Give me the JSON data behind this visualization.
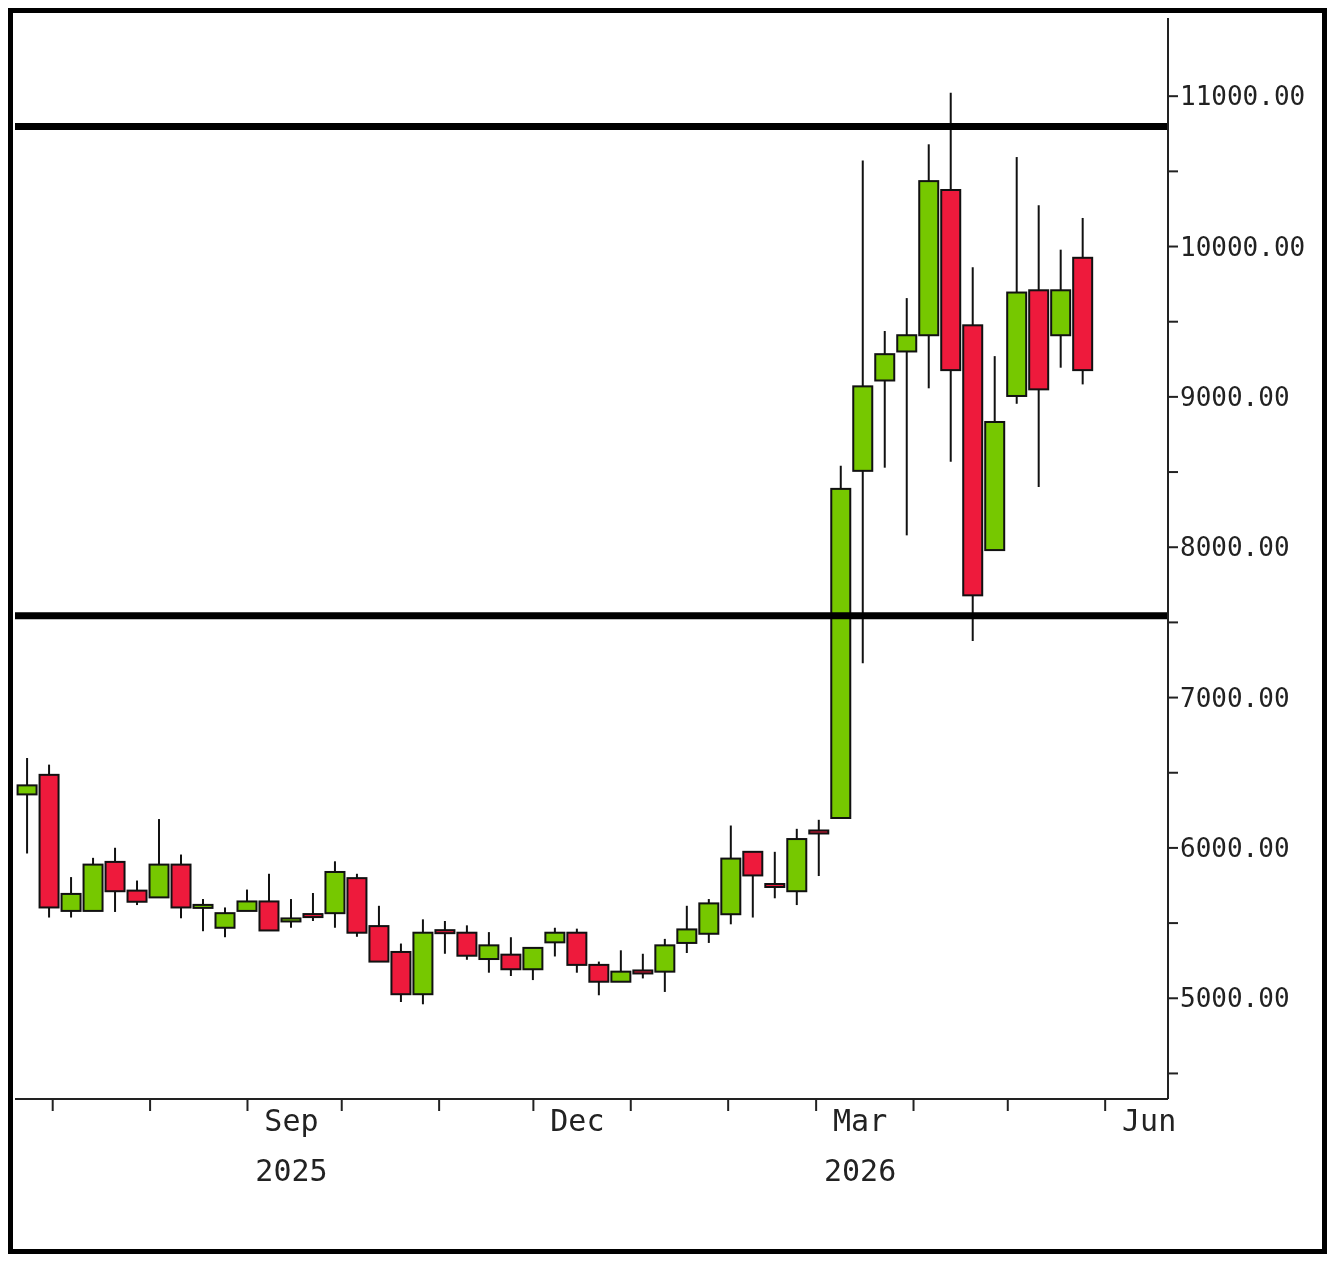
{
  "chart_data": {
    "type": "candlestick",
    "x": [
      "2025-06-23",
      "2025-06-30",
      "2025-07-07",
      "2025-07-14",
      "2025-07-21",
      "2025-07-28",
      "2025-08-04",
      "2025-08-11",
      "2025-08-18",
      "2025-08-25",
      "2025-09-01",
      "2025-09-08",
      "2025-09-15",
      "2025-09-22",
      "2025-09-29",
      "2025-10-06",
      "2025-10-13",
      "2025-10-20",
      "2025-10-27",
      "2025-11-03",
      "2025-11-10",
      "2025-11-17",
      "2025-11-24",
      "2025-12-01",
      "2025-12-08",
      "2025-12-15",
      "2025-12-22",
      "2025-12-29",
      "2026-01-05",
      "2026-01-12",
      "2026-01-19",
      "2026-01-26",
      "2026-02-02",
      "2026-02-09",
      "2026-02-16",
      "2026-02-23",
      "2026-03-02",
      "2026-03-09",
      "2026-03-16",
      "2026-03-23",
      "2026-03-30",
      "2026-04-06",
      "2026-04-13",
      "2026-04-20",
      "2026-04-27",
      "2026-05-04",
      "2026-05-11",
      "2026-05-18",
      "2026-05-25"
    ],
    "ohlc": [
      [
        6356,
        6598,
        5963,
        6416
      ],
      [
        6486,
        6554,
        5537,
        5604
      ],
      [
        5581,
        5806,
        5537,
        5694
      ],
      [
        5581,
        5934,
        5581,
        5889
      ],
      [
        5907,
        6001,
        5574,
        5712
      ],
      [
        5716,
        5783,
        5620,
        5642
      ],
      [
        5671,
        6192,
        5671,
        5889
      ],
      [
        5889,
        5956,
        5532,
        5604
      ],
      [
        5605,
        5660,
        5446,
        5611
      ],
      [
        5469,
        5604,
        5406,
        5566
      ],
      [
        5581,
        5723,
        5581,
        5644
      ],
      [
        5644,
        5828,
        5451,
        5451
      ],
      [
        5515,
        5660,
        5469,
        5521
      ],
      [
        5550,
        5700,
        5514,
        5536
      ],
      [
        5566,
        5911,
        5469,
        5840
      ],
      [
        5799,
        5828,
        5409,
        5436
      ],
      [
        5480,
        5615,
        5244,
        5244
      ],
      [
        5308,
        5364,
        4975,
        5027
      ],
      [
        5027,
        5525,
        4960,
        5436
      ],
      [
        5443,
        5514,
        5296,
        5433
      ],
      [
        5436,
        5485,
        5256,
        5283
      ],
      [
        5261,
        5440,
        5170,
        5352
      ],
      [
        5290,
        5406,
        5148,
        5193
      ],
      [
        5193,
        5335,
        5121,
        5335
      ],
      [
        5372,
        5469,
        5278,
        5436
      ],
      [
        5436,
        5463,
        5170,
        5222
      ],
      [
        5222,
        5244,
        5020,
        5110
      ],
      [
        5110,
        5319,
        5110,
        5177
      ],
      [
        5175,
        5296,
        5132,
        5163
      ],
      [
        5177,
        5395,
        5042,
        5352
      ],
      [
        5368,
        5615,
        5301,
        5458
      ],
      [
        5429,
        5660,
        5368,
        5631
      ],
      [
        5559,
        6149,
        5492,
        5929
      ],
      [
        5974,
        5974,
        5537,
        5817
      ],
      [
        5750,
        5974,
        5665,
        5740
      ],
      [
        5712,
        6127,
        5620,
        6059
      ],
      [
        6106,
        6187,
        5813,
        6098
      ],
      [
        6199,
        8542,
        6199,
        8388
      ],
      [
        8508,
        10572,
        7229,
        9070
      ],
      [
        9109,
        9438,
        8529,
        9284
      ],
      [
        9302,
        9657,
        8079,
        9410
      ],
      [
        9410,
        10680,
        9057,
        10435
      ],
      [
        10376,
        11022,
        8569,
        9178
      ],
      [
        9476,
        9863,
        7376,
        7680
      ],
      [
        7981,
        9271,
        7981,
        8833
      ],
      [
        9006,
        10595,
        8954,
        9694
      ],
      [
        9709,
        10275,
        8401,
        9050
      ],
      [
        9410,
        9979,
        9194,
        9709
      ],
      [
        9925,
        10190,
        9083,
        9178
      ]
    ],
    "colors": [
      "#76c800",
      "#ee1a3c",
      "#76c800",
      "#76c800",
      "#ee1a3c",
      "#ee1a3c",
      "#76c800",
      "#ee1a3c",
      "#76c800",
      "#76c800",
      "#76c800",
      "#ee1a3c",
      "#76c800",
      "#ee1a3c",
      "#76c800",
      "#ee1a3c",
      "#ee1a3c",
      "#ee1a3c",
      "#76c800",
      "#ee1a3c",
      "#ee1a3c",
      "#76c800",
      "#ee1a3c",
      "#76c800",
      "#76c800",
      "#ee1a3c",
      "#ee1a3c",
      "#76c800",
      "#ee1a3c",
      "#76c800",
      "#76c800",
      "#76c800",
      "#76c800",
      "#ee1a3c",
      "#ee1a3c",
      "#76c800",
      "#ee1a3c",
      "#76c800",
      "#76c800",
      "#76c800",
      "#76c800",
      "#76c800",
      "#ee1a3c",
      "#ee1a3c",
      "#76c800",
      "#76c800",
      "#ee1a3c",
      "#76c800",
      "#ee1a3c"
    ],
    "xlim": [
      "2025-06-19",
      "2026-06-21"
    ],
    "xticks": [
      {
        "value": "2025-07-01",
        "label": null
      },
      {
        "value": "2025-08-01",
        "label": null
      },
      {
        "value": "2025-09-01",
        "label": null
      },
      {
        "value": "2025-09-15",
        "label": "Sep\n2025"
      },
      {
        "value": "2025-10-01",
        "label": null
      },
      {
        "value": "2025-11-01",
        "label": null
      },
      {
        "value": "2025-12-01",
        "label": null
      },
      {
        "value": "2025-12-15",
        "label": "Dec"
      },
      {
        "value": "2026-01-01",
        "label": null
      },
      {
        "value": "2026-02-01",
        "label": null
      },
      {
        "value": "2026-03-01",
        "label": null
      },
      {
        "value": "2026-03-15",
        "label": "Mar\n2026"
      },
      {
        "value": "2026-04-01",
        "label": null
      },
      {
        "value": "2026-05-01",
        "label": null
      },
      {
        "value": "2026-06-01",
        "label": null
      },
      {
        "value": "2026-06-15",
        "label": "Jun"
      }
    ],
    "ylim": [
      4330,
      11520
    ],
    "yticks": [
      {
        "value": 4500,
        "label": null
      },
      {
        "value": 5000,
        "label": "5000.00"
      },
      {
        "value": 5500,
        "label": null
      },
      {
        "value": 6000,
        "label": "6000.00"
      },
      {
        "value": 6500,
        "label": null
      },
      {
        "value": 7000,
        "label": "7000.00"
      },
      {
        "value": 7500,
        "label": null
      },
      {
        "value": 8000,
        "label": "8000.00"
      },
      {
        "value": 8500,
        "label": null
      },
      {
        "value": 9000,
        "label": "9000.00"
      },
      {
        "value": 9500,
        "label": null
      },
      {
        "value": 10000,
        "label": "10000.00"
      },
      {
        "value": 10500,
        "label": null
      },
      {
        "value": 11000,
        "label": "11000.00"
      }
    ],
    "ref_lines": [
      {
        "axis": "y",
        "value": 10798,
        "color": "#000000"
      },
      {
        "axis": "y",
        "value": 7545,
        "color": "#000000"
      }
    ],
    "grid": false
  }
}
